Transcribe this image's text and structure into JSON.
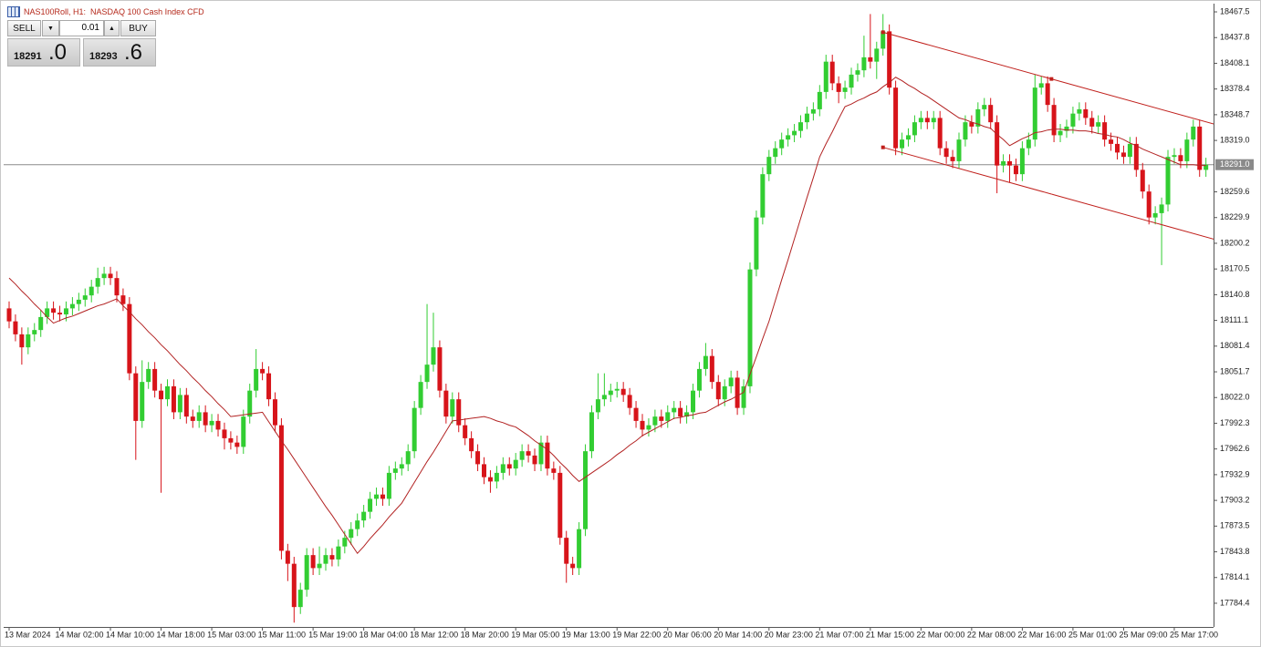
{
  "chart_data": {
    "type": "candlestick",
    "title": "NAS100Roll, H1:  NASDAQ 100 Cash Index CFD",
    "up_color": "#32cd32",
    "down_color": "#d7141a",
    "categories": [
      "13 Mar 2024",
      null,
      null,
      null,
      null,
      null,
      null,
      null,
      "14 Mar 02:00",
      null,
      null,
      null,
      null,
      null,
      null,
      null,
      "14 Mar 10:00",
      null,
      null,
      null,
      null,
      null,
      null,
      null,
      "14 Mar 18:00",
      null,
      null,
      null,
      null,
      null,
      null,
      null,
      "15 Mar 03:00",
      null,
      null,
      null,
      null,
      null,
      null,
      null,
      "15 Mar 11:00",
      null,
      null,
      null,
      null,
      null,
      null,
      null,
      "15 Mar 19:00",
      null,
      null,
      null,
      null,
      null,
      null,
      null,
      "18 Mar 04:00",
      null,
      null,
      null,
      null,
      null,
      null,
      null,
      "18 Mar 12:00",
      null,
      null,
      null,
      null,
      null,
      null,
      null,
      "18 Mar 20:00",
      null,
      null,
      null,
      null,
      null,
      null,
      null,
      "19 Mar 05:00",
      null,
      null,
      null,
      null,
      null,
      null,
      null,
      "19 Mar 13:00",
      null,
      null,
      null,
      null,
      null,
      null,
      null,
      "19 Mar 22:00",
      null,
      null,
      null,
      null,
      null,
      null,
      null,
      "20 Mar 06:00",
      null,
      null,
      null,
      null,
      null,
      null,
      null,
      "20 Mar 14:00",
      null,
      null,
      null,
      null,
      null,
      null,
      null,
      "20 Mar 23:00",
      null,
      null,
      null,
      null,
      null,
      null,
      null,
      "21 Mar 07:00",
      null,
      null,
      null,
      null,
      null,
      null,
      null,
      "21 Mar 15:00",
      null,
      null,
      null,
      null,
      null,
      null,
      null,
      "22 Mar 00:00",
      null,
      null,
      null,
      null,
      null,
      null,
      null,
      "22 Mar 08:00",
      null,
      null,
      null,
      null,
      null,
      null,
      null,
      "22 Mar 16:00",
      null,
      null,
      null,
      null,
      null,
      null,
      null,
      "25 Mar 01:00",
      null,
      null,
      null,
      null,
      null,
      null,
      null,
      "25 Mar 09:00",
      null,
      null,
      null,
      null,
      null,
      null,
      null,
      "25 Mar 17:00",
      null,
      null,
      null,
      null,
      null
    ],
    "open": [
      18125,
      18110,
      18095,
      18080,
      18095,
      18100,
      18115,
      18125,
      18120,
      18118,
      18125,
      18130,
      18135,
      18140,
      18150,
      18160,
      18165,
      18160,
      18140,
      18130,
      18050,
      17995,
      18040,
      18055,
      18030,
      18020,
      18035,
      18005,
      18025,
      18000,
      17995,
      18005,
      17990,
      17995,
      17985,
      17975,
      17970,
      17965,
      18000,
      18030,
      18055,
      18050,
      18020,
      17990,
      17845,
      17830,
      17780,
      17800,
      17840,
      17825,
      17830,
      17840,
      17835,
      17850,
      17860,
      17870,
      17880,
      17890,
      17905,
      17910,
      17905,
      17935,
      17940,
      17945,
      17960,
      18010,
      18040,
      18060,
      18080,
      18030,
      18000,
      18020,
      17990,
      17975,
      17960,
      17945,
      17930,
      17925,
      17935,
      17945,
      17940,
      17950,
      17960,
      17955,
      17945,
      17970,
      17940,
      17935,
      17860,
      17830,
      17825,
      17870,
      17960,
      18005,
      18020,
      18025,
      18030,
      18032,
      18025,
      18010,
      17995,
      17985,
      17990,
      18000,
      17995,
      18005,
      18010,
      18000,
      18005,
      18030,
      18055,
      18070,
      18040,
      18020,
      18035,
      18045,
      18010,
      18035,
      18170,
      18230,
      18280,
      18300,
      18310,
      18320,
      18325,
      18330,
      18340,
      18350,
      18355,
      18375,
      18410,
      18385,
      18375,
      18380,
      18395,
      18400,
      18415,
      18410,
      18425,
      18445,
      18380,
      18310,
      18320,
      18325,
      18340,
      18345,
      18340,
      18345,
      18310,
      18300,
      18295,
      18320,
      18340,
      18335,
      18355,
      18360,
      18340,
      18290,
      18295,
      18290,
      18280,
      18310,
      18320,
      18380,
      18385,
      18360,
      18325,
      18330,
      18335,
      18350,
      18355,
      18345,
      18335,
      18340,
      18320,
      18315,
      18305,
      18300,
      18315,
      18285,
      18260,
      18230,
      18235,
      18245,
      18300,
      18302,
      18295,
      18320,
      18335,
      18285
    ],
    "high": [
      18133,
      18118,
      18103,
      18103,
      18108,
      18123,
      18133,
      18133,
      18128,
      18133,
      18138,
      18143,
      18148,
      18158,
      18172,
      18173,
      18173,
      18168,
      18148,
      18138,
      18058,
      18065,
      18063,
      18063,
      18038,
      18043,
      18043,
      18033,
      18033,
      18008,
      18013,
      18013,
      18003,
      18003,
      17993,
      17983,
      17978,
      18008,
      18038,
      18078,
      18063,
      18058,
      18028,
      17998,
      17853,
      17838,
      17808,
      17848,
      17848,
      17850,
      17848,
      17848,
      17858,
      17868,
      17878,
      17888,
      17898,
      17913,
      17918,
      17918,
      17943,
      17948,
      17953,
      17968,
      18018,
      18048,
      18130,
      18120,
      18088,
      18038,
      18028,
      18028,
      17998,
      17983,
      17968,
      17953,
      17938,
      17943,
      17953,
      17953,
      17958,
      17968,
      17968,
      17963,
      17978,
      17978,
      17948,
      17943,
      17868,
      17838,
      17878,
      17968,
      18013,
      18050,
      18050,
      18038,
      18040,
      18040,
      18033,
      18018,
      18003,
      17998,
      18008,
      18008,
      18013,
      18018,
      18018,
      18013,
      18038,
      18063,
      18085,
      18078,
      18048,
      18043,
      18053,
      18053,
      18043,
      18178,
      18238,
      18288,
      18308,
      18318,
      18328,
      18333,
      18338,
      18348,
      18358,
      18363,
      18383,
      18418,
      18418,
      18393,
      18388,
      18403,
      18408,
      18440,
      18465,
      18433,
      18465,
      18453,
      18388,
      18328,
      18333,
      18348,
      18353,
      18353,
      18353,
      18353,
      18318,
      18308,
      18328,
      18348,
      18348,
      18363,
      18368,
      18368,
      18348,
      18303,
      18303,
      18298,
      18318,
      18328,
      18395,
      18393,
      18393,
      18368,
      18338,
      18343,
      18358,
      18363,
      18363,
      18353,
      18348,
      18348,
      18328,
      18323,
      18313,
      18323,
      18323,
      18293,
      18268,
      18243,
      18253,
      18308,
      18310,
      18310,
      18328,
      18343,
      18343,
      18299
    ],
    "low": [
      18102,
      18087,
      18060,
      18072,
      18087,
      18092,
      18107,
      18112,
      18110,
      18110,
      18117,
      18122,
      18127,
      18132,
      18142,
      18152,
      18152,
      18132,
      18122,
      18042,
      17950,
      17987,
      18032,
      18022,
      17912,
      18012,
      17997,
      17997,
      17992,
      17987,
      17987,
      17982,
      17982,
      17977,
      17962,
      17962,
      17957,
      17957,
      17992,
      18022,
      18042,
      18012,
      17982,
      17835,
      17810,
      17762,
      17772,
      17792,
      17817,
      17817,
      17822,
      17827,
      17827,
      17842,
      17852,
      17862,
      17872,
      17882,
      17897,
      17897,
      17897,
      17927,
      17932,
      17937,
      17952,
      18002,
      18032,
      18052,
      18022,
      17992,
      17992,
      17982,
      17967,
      17952,
      17937,
      17922,
      17912,
      17917,
      17927,
      17932,
      17932,
      17942,
      17947,
      17937,
      17937,
      17932,
      17927,
      17852,
      17808,
      17817,
      17817,
      17862,
      17952,
      17997,
      18012,
      18017,
      18022,
      18017,
      18002,
      17987,
      17977,
      17977,
      17982,
      17987,
      17987,
      17997,
      17992,
      17992,
      17997,
      18022,
      18047,
      18032,
      18012,
      18012,
      18027,
      18002,
      18002,
      18027,
      18162,
      18222,
      18272,
      18292,
      18302,
      18312,
      18317,
      18322,
      18332,
      18342,
      18347,
      18367,
      18377,
      18362,
      18367,
      18372,
      18387,
      18392,
      18402,
      18390,
      18417,
      18372,
      18302,
      18302,
      18312,
      18317,
      18332,
      18332,
      18332,
      18302,
      18292,
      18287,
      18287,
      18312,
      18327,
      18327,
      18347,
      18332,
      18258,
      18282,
      18270,
      18272,
      18272,
      18302,
      18312,
      18372,
      18352,
      18317,
      18317,
      18322,
      18327,
      18342,
      18337,
      18327,
      18327,
      18312,
      18307,
      18297,
      18292,
      18292,
      18277,
      18252,
      18222,
      18222,
      18175,
      18237,
      18292,
      18287,
      18287,
      18312,
      18277,
      18277
    ],
    "close": [
      18110,
      18095,
      18080,
      18095,
      18100,
      18115,
      18125,
      18120,
      18118,
      18125,
      18130,
      18135,
      18140,
      18150,
      18160,
      18165,
      18160,
      18140,
      18130,
      18050,
      17995,
      18040,
      18055,
      18030,
      18020,
      18035,
      18005,
      18025,
      18000,
      17995,
      18005,
      17990,
      17995,
      17985,
      17975,
      17970,
      17965,
      18000,
      18030,
      18055,
      18050,
      18020,
      17990,
      17845,
      17830,
      17780,
      17800,
      17840,
      17825,
      17830,
      17840,
      17835,
      17850,
      17860,
      17870,
      17880,
      17890,
      17905,
      17910,
      17905,
      17935,
      17940,
      17945,
      17960,
      18010,
      18040,
      18060,
      18080,
      18030,
      18000,
      18020,
      17990,
      17975,
      17960,
      17945,
      17930,
      17925,
      17935,
      17945,
      17940,
      17950,
      17960,
      17955,
      17945,
      17970,
      17940,
      17935,
      17860,
      17830,
      17825,
      17870,
      17960,
      18005,
      18020,
      18025,
      18030,
      18032,
      18025,
      18010,
      17995,
      17985,
      17990,
      18000,
      17995,
      18005,
      18010,
      18000,
      18005,
      18030,
      18055,
      18070,
      18040,
      18020,
      18035,
      18045,
      18010,
      18035,
      18170,
      18230,
      18280,
      18300,
      18310,
      18320,
      18325,
      18330,
      18340,
      18350,
      18355,
      18375,
      18410,
      18385,
      18375,
      18380,
      18395,
      18400,
      18415,
      18410,
      18425,
      18445,
      18380,
      18310,
      18320,
      18325,
      18340,
      18345,
      18340,
      18345,
      18310,
      18300,
      18295,
      18320,
      18340,
      18335,
      18355,
      18360,
      18340,
      18290,
      18295,
      18290,
      18280,
      18310,
      18320,
      18380,
      18385,
      18360,
      18325,
      18330,
      18335,
      18350,
      18355,
      18345,
      18335,
      18340,
      18320,
      18315,
      18305,
      18300,
      18315,
      18285,
      18260,
      18230,
      18235,
      18245,
      18300,
      18302,
      18295,
      18320,
      18335,
      18285,
      18291
    ],
    "ma": {
      "color": "#b22222",
      "values": [
        18160,
        18153,
        18145,
        18138,
        18130,
        18123,
        18115,
        18108,
        18111,
        18114,
        18116,
        18119,
        18122,
        18125,
        18128,
        18130,
        18133,
        18136,
        18128,
        18121,
        18113,
        18106,
        18098,
        18091,
        18083,
        18076,
        18068,
        18060,
        18053,
        18045,
        18038,
        18030,
        18023,
        18015,
        18008,
        18000,
        18001,
        18002,
        18003,
        18004,
        18005,
        17994,
        17983,
        17972,
        17962,
        17951,
        17940,
        17929,
        17918,
        17907,
        17896,
        17886,
        17875,
        17864,
        17853,
        17842,
        17850,
        17859,
        17867,
        17875,
        17884,
        17892,
        17900,
        17912,
        17924,
        17936,
        17948,
        17959,
        17971,
        17983,
        17995,
        17996,
        17997,
        17998,
        17999,
        18000,
        17998,
        17995,
        17993,
        17990,
        17988,
        17983,
        17978,
        17972,
        17967,
        17962,
        17955,
        17947,
        17940,
        17932,
        17925,
        17930,
        17935,
        17940,
        17945,
        17950,
        17956,
        17961,
        17967,
        17972,
        17978,
        17982,
        17986,
        17990,
        17994,
        17998,
        17999,
        18001,
        18002,
        18004,
        18005,
        18009,
        18013,
        18017,
        18020,
        18024,
        18028,
        18049,
        18069,
        18090,
        18110,
        18134,
        18158,
        18181,
        18205,
        18229,
        18253,
        18276,
        18300,
        18315,
        18329,
        18344,
        18358,
        18361,
        18365,
        18368,
        18372,
        18375,
        18381,
        18386,
        18392,
        18388,
        18383,
        18379,
        18374,
        18370,
        18365,
        18360,
        18355,
        18350,
        18345,
        18343,
        18340,
        18338,
        18335,
        18333,
        18326,
        18320,
        18313,
        18317,
        18321,
        18324,
        18328,
        18329,
        18331,
        18332,
        18332,
        18331,
        18331,
        18330,
        18330,
        18329,
        18327,
        18326,
        18324,
        18323,
        18320,
        18316,
        18313,
        18309,
        18306,
        18303,
        18300,
        18297,
        18294,
        18291,
        18291,
        18291,
        18290,
        18290
      ]
    },
    "trendlines": [
      {
        "color": "#c0201c",
        "x": [
          138,
          164.6
        ],
        "y": [
          18444,
          18390
        ]
      },
      {
        "color": "#c0201c",
        "x": [
          138,
          164.6
        ],
        "y": [
          18311,
          18257
        ]
      }
    ],
    "current_price": {
      "value": 18291,
      "label": "18291.0"
    },
    "ylim": [
      17757,
      18477
    ],
    "yticks": [
      18467.5,
      18437.8,
      18408.1,
      18378.4,
      18348.7,
      {
        "value": 18319,
        "label": "18319.0"
      },
      18259.6,
      18229.9,
      18200.2,
      18170.5,
      18140.8,
      18111.1,
      18081.4,
      18051.7,
      {
        "value": 18022,
        "label": "18022.0"
      },
      17992.3,
      17962.6,
      17932.9,
      17903.2,
      17873.5,
      17843.8,
      17814.1,
      17784.4
    ],
    "grid": false
  },
  "trade_panel": {
    "sell": "SELL",
    "volume": "0.01",
    "buy": "BUY",
    "bid_main": "18291",
    "bid_frac": ".0",
    "ask_main": "18293",
    "ask_frac": ".6"
  }
}
